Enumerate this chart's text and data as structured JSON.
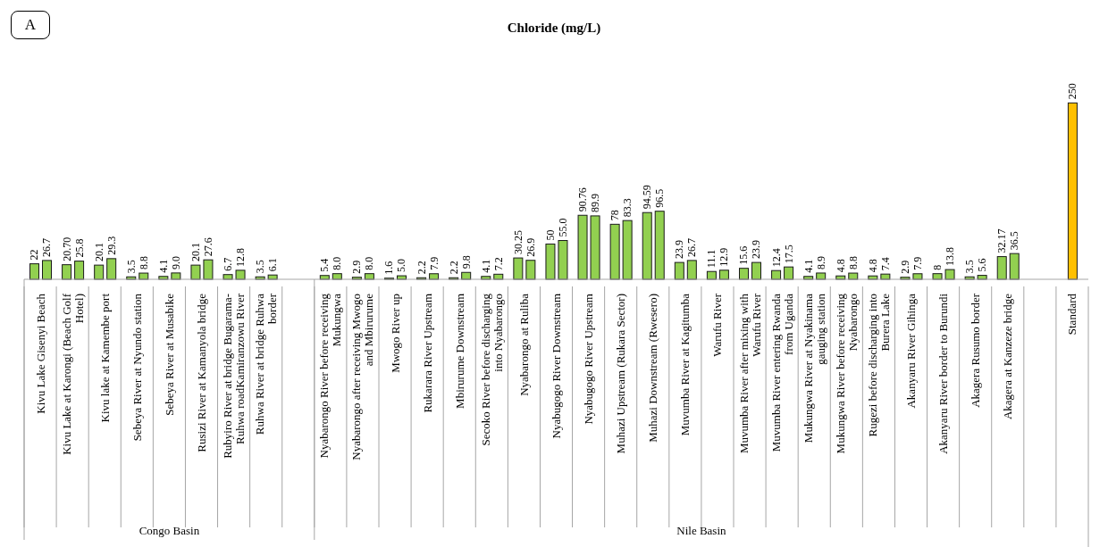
{
  "chart_data": {
    "type": "bar",
    "title": "Chloride  (mg/L)",
    "annotations": [
      "A",
      "Congo Basin",
      "Nile Basin"
    ],
    "categories": [
      "Kivu Lake Gisenyi Beach",
      "Kivu Lake at Karongi (Beach Golf Hotel)",
      "Kivu lake at Kamembe port",
      "Sebeya River at Nyundo station",
      "Sebeya River at Musabike",
      "Rusizi River at Kamanyola bridge",
      "Rubyiro River at bridge Bugarama- Ruhwa roadKamiranzowu River",
      "Ruhwa River at bridge Ruhwa border",
      null,
      "Nyabarongo River before receiving Mukungwa",
      "Nyabarongo after receiving Mwogo and Mbirurume",
      "Mwogo River up",
      "Rukarara River Upstream",
      "Mbirurume Downstream",
      "Secoko River before discharging into Nyabarongo",
      "Nyabarongo at Ruliba",
      "Nyabugogo River Downstream",
      "Nyabugogo River Upstream",
      "Muhazi Upstream (Rukara Sector)",
      "Muhazi Downstream (Rwesero)",
      "Muvumba River at Kagitumba",
      "Warufu River",
      "Muvumba River after mixing with Warufu River",
      "Muvumba River entering Rwanda from Uganda",
      "Mukungwa River at Nyakinama gauging station",
      "Mukungwa River before receiving Nyabarongo",
      "Rugezi before discharging into Burera Lake",
      "Akanyaru River Gihinga",
      "Akanyaru River border to Burundi",
      "Akagera Rusumo border",
      "Akagera at Kanzeze bridge",
      null,
      "Standard"
    ],
    "series": [
      {
        "color": "#92d050",
        "values": [
          22,
          20.7,
          20.1,
          3.5,
          4.1,
          20.1,
          6.7,
          3.5,
          null,
          5.4,
          2.9,
          1.6,
          2.2,
          2.2,
          4.1,
          30.25,
          50,
          90.76,
          78,
          94.59,
          23.9,
          11.1,
          15.6,
          12.4,
          4.1,
          4.8,
          4.8,
          2.9,
          8,
          3.5,
          32.17,
          null,
          null
        ],
        "value_labels": [
          "22",
          "20.70",
          "20.1",
          "3.5",
          "4.1",
          "20.1",
          "6.7",
          "3.5",
          null,
          "5.4",
          "2.9",
          "1.6",
          "2.2",
          "2.2",
          "4.1",
          "30.25",
          "50",
          "90.76",
          "78",
          "94.59",
          "23.9",
          "11.1",
          "15.6",
          "12.4",
          "4.1",
          "4.8",
          "4.8",
          "2.9",
          "8",
          "3.5",
          "32.17",
          null,
          null
        ]
      },
      {
        "color": "#92d050",
        "values": [
          26.7,
          25.8,
          29.3,
          8.8,
          9.0,
          27.6,
          12.8,
          6.1,
          null,
          8.0,
          8.0,
          5.0,
          7.9,
          9.8,
          7.2,
          26.9,
          55.0,
          89.9,
          83.3,
          96.5,
          26.7,
          12.9,
          23.9,
          17.5,
          8.9,
          8.8,
          7.4,
          7.9,
          13.8,
          5.6,
          36.5,
          null,
          null
        ],
        "value_labels": [
          "26.7",
          "25.8",
          "29.3",
          "8.8",
          "9.0",
          "27.6",
          "12.8",
          "6.1",
          null,
          "8.0",
          "8.0",
          "5.0",
          "7.9",
          "9.8",
          "7.2",
          "26.9",
          "55.0",
          "89.9",
          "83.3",
          "96.5",
          "26.7",
          "12.9",
          "23.9",
          "17.5",
          "8.9",
          "8.8",
          "7.4",
          "7.9",
          "13.8",
          "5.6",
          "36.5",
          null,
          null
        ]
      },
      {
        "color": "#ffc000",
        "values": [
          null,
          null,
          null,
          null,
          null,
          null,
          null,
          null,
          null,
          null,
          null,
          null,
          null,
          null,
          null,
          null,
          null,
          null,
          null,
          null,
          null,
          null,
          null,
          null,
          null,
          null,
          null,
          null,
          null,
          null,
          null,
          null,
          250
        ],
        "value_labels": [
          null,
          null,
          null,
          null,
          null,
          null,
          null,
          null,
          null,
          null,
          null,
          null,
          null,
          null,
          null,
          null,
          null,
          null,
          null,
          null,
          null,
          null,
          null,
          null,
          null,
          null,
          null,
          null,
          null,
          null,
          null,
          null,
          "250"
        ]
      }
    ]
  }
}
